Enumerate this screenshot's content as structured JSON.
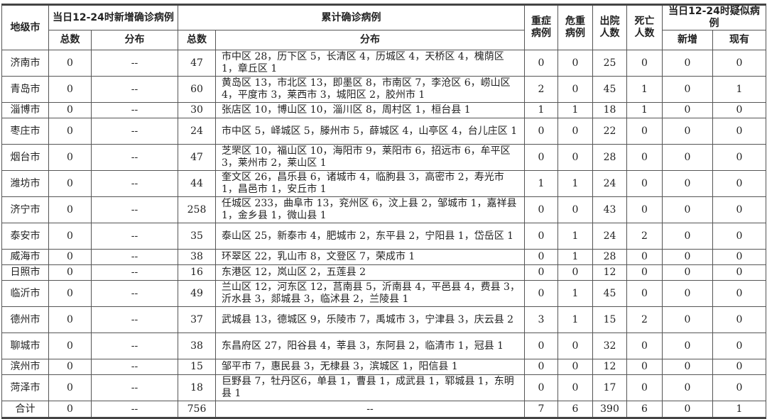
{
  "header": {
    "city": "地级市",
    "new_group": "当日12-24时新增确诊病例",
    "cum_group": "累计确诊病例",
    "total": "总数",
    "dist": "分布",
    "severe": "重症病例",
    "critical": "危重病例",
    "discharged": "出院人数",
    "deaths": "死亡人数",
    "suspect_group": "当日12-24时疑似病例",
    "suspect_new": "新增",
    "suspect_current": "现有"
  },
  "rows": [
    {
      "city": "济南市",
      "new_total": "0",
      "new_dist": "--",
      "cum_total": "47",
      "cum_dist": "市中区 28，历下区 5，长清区 4，历城区 4，天桥区 4，槐荫区 1，章丘区 1",
      "severe": "0",
      "critical": "0",
      "discharged": "25",
      "deaths": "0",
      "s_new": "0",
      "s_cur": "0"
    },
    {
      "city": "青岛市",
      "new_total": "0",
      "new_dist": "--",
      "cum_total": "60",
      "cum_dist": "黄岛区 13，市北区 13，即墨区 8，市南区 7，李沧区 6，崂山区 4，平度市 3，莱西市 3，城阳区 2，胶州市 1",
      "severe": "2",
      "critical": "0",
      "discharged": "45",
      "deaths": "1",
      "s_new": "0",
      "s_cur": "1"
    },
    {
      "city": "淄博市",
      "new_total": "0",
      "new_dist": "--",
      "cum_total": "30",
      "cum_dist": "张店区 10，博山区 10，淄川区 8，周村区 1，桓台县 1",
      "severe": "1",
      "critical": "1",
      "discharged": "18",
      "deaths": "1",
      "s_new": "0",
      "s_cur": "0"
    },
    {
      "city": "枣庄市",
      "new_total": "0",
      "new_dist": "--",
      "cum_total": "24",
      "cum_dist": "市中区 5，峄城区 5，滕州市 5，薛城区 4，山亭区 4，台儿庄区 1",
      "severe": "0",
      "critical": "0",
      "discharged": "22",
      "deaths": "0",
      "s_new": "0",
      "s_cur": "0"
    },
    {
      "city": "烟台市",
      "new_total": "0",
      "new_dist": "--",
      "cum_total": "47",
      "cum_dist": "芝罘区 10，福山区 10，海阳市 9，莱阳市 6，招远市 6，牟平区 3，莱州市 2，莱山区 1",
      "severe": "0",
      "critical": "0",
      "discharged": "28",
      "deaths": "0",
      "s_new": "0",
      "s_cur": "0"
    },
    {
      "city": "潍坊市",
      "new_total": "0",
      "new_dist": "--",
      "cum_total": "44",
      "cum_dist": "奎文区 26，昌乐县 6，诸城市 4，临朐县 3，高密市 2，寿光市 1，昌邑市 1，安丘市 1",
      "severe": "1",
      "critical": "1",
      "discharged": "24",
      "deaths": "0",
      "s_new": "0",
      "s_cur": "0"
    },
    {
      "city": "济宁市",
      "new_total": "0",
      "new_dist": "--",
      "cum_total": "258",
      "cum_dist": "任城区 233，曲阜市 13，兖州区 6，汶上县 2，邹城市 1，嘉祥县 1，金乡县 1，微山县 1",
      "severe": "0",
      "critical": "0",
      "discharged": "43",
      "deaths": "0",
      "s_new": "0",
      "s_cur": "0"
    },
    {
      "city": "泰安市",
      "new_total": "0",
      "new_dist": "--",
      "cum_total": "35",
      "cum_dist": "泰山区 25，新泰市 4，肥城市 2，东平县 2，宁阳县 1，岱岳区 1",
      "severe": "0",
      "critical": "1",
      "discharged": "24",
      "deaths": "2",
      "s_new": "0",
      "s_cur": "0"
    },
    {
      "city": "威海市",
      "new_total": "0",
      "new_dist": "--",
      "cum_total": "38",
      "cum_dist": "环翠区 22，乳山市 8，文登区 7，荣成市 1",
      "severe": "0",
      "critical": "1",
      "discharged": "28",
      "deaths": "0",
      "s_new": "0",
      "s_cur": "0"
    },
    {
      "city": "日照市",
      "new_total": "0",
      "new_dist": "--",
      "cum_total": "16",
      "cum_dist": "东港区 12，岚山区 2，五莲县 2",
      "severe": "0",
      "critical": "0",
      "discharged": "12",
      "deaths": "0",
      "s_new": "0",
      "s_cur": "0"
    },
    {
      "city": "临沂市",
      "new_total": "0",
      "new_dist": "--",
      "cum_total": "49",
      "cum_dist": "兰山区 12，河东区 12，莒南县 5，沂南县 4，平邑县 4，费县 3，沂水县 3，郯城县 3，临沭县 2，兰陵县 1",
      "severe": "0",
      "critical": "1",
      "discharged": "45",
      "deaths": "0",
      "s_new": "0",
      "s_cur": "0"
    },
    {
      "city": "德州市",
      "new_total": "0",
      "new_dist": "--",
      "cum_total": "37",
      "cum_dist": "武城县 13，德城区 9，乐陵市 7，禹城市 3，宁津县 3，庆云县 2",
      "severe": "3",
      "critical": "1",
      "discharged": "15",
      "deaths": "2",
      "s_new": "0",
      "s_cur": "0"
    },
    {
      "city": "聊城市",
      "new_total": "0",
      "new_dist": "--",
      "cum_total": "38",
      "cum_dist": "东昌府区 27，阳谷县 4，莘县 3，东阿县 2，临清市 1，冠县 1",
      "severe": "0",
      "critical": "0",
      "discharged": "32",
      "deaths": "0",
      "s_new": "0",
      "s_cur": "0"
    },
    {
      "city": "滨州市",
      "new_total": "0",
      "new_dist": "--",
      "cum_total": "15",
      "cum_dist": "邹平市 7，惠民县 3，无棣县 3，滨城区 1，阳信县 1",
      "severe": "0",
      "critical": "0",
      "discharged": "12",
      "deaths": "0",
      "s_new": "0",
      "s_cur": "0"
    },
    {
      "city": "菏泽市",
      "new_total": "0",
      "new_dist": "--",
      "cum_total": "18",
      "cum_dist": "巨野县 7，牡丹区6，单县 1，曹县 1，成武县 1，郓城县 1，东明县 1",
      "severe": "0",
      "critical": "0",
      "discharged": "17",
      "deaths": "0",
      "s_new": "0",
      "s_cur": "0"
    }
  ],
  "total_row": {
    "city": "合计",
    "new_total": "0",
    "new_dist": "--",
    "cum_total": "756",
    "cum_dist": "--",
    "severe": "7",
    "critical": "6",
    "discharged": "390",
    "deaths": "6",
    "s_new": "0",
    "s_cur": "1"
  }
}
